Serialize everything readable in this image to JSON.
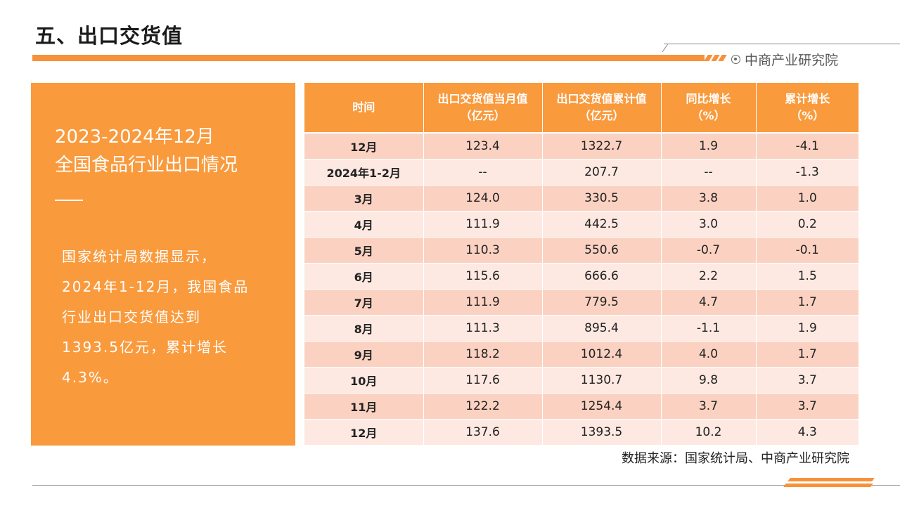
{
  "page_title": "五、出口交货值",
  "brand": {
    "name": "中商产业研究院",
    "icon": "circle-dot-icon"
  },
  "panel": {
    "title_line1": "2023-2024年12月",
    "title_line2": "全国食品行业出口情况",
    "body": "国家统计局数据显示，2024年1-12月，我国食品行业出口交货值达到1393.5亿元，累计增长4.3%。"
  },
  "table": {
    "headers": [
      "时间",
      "出口交货值当月值\n（亿元）",
      "出口交货值累计值\n（亿元）",
      "同比增长\n（%）",
      "累计增长\n（%）"
    ],
    "rows": [
      [
        "12月",
        "123.4",
        "1322.7",
        "1.9",
        "-4.1"
      ],
      [
        "2024年1-2月",
        "--",
        "207.7",
        "--",
        "-1.3"
      ],
      [
        "3月",
        "124.0",
        "330.5",
        "3.8",
        "1.0"
      ],
      [
        "4月",
        "111.9",
        "442.5",
        "3.0",
        "0.2"
      ],
      [
        "5月",
        "110.3",
        "550.6",
        "-0.7",
        "-0.1"
      ],
      [
        "6月",
        "115.6",
        "666.6",
        "2.2",
        "1.5"
      ],
      [
        "7月",
        "111.9",
        "779.5",
        "4.7",
        "1.7"
      ],
      [
        "8月",
        "111.3",
        "895.4",
        "-1.1",
        "1.9"
      ],
      [
        "9月",
        "118.2",
        "1012.4",
        "4.0",
        "1.7"
      ],
      [
        "10月",
        "117.6",
        "1130.7",
        "9.8",
        "3.7"
      ],
      [
        "11月",
        "122.2",
        "1254.4",
        "3.7",
        "3.7"
      ],
      [
        "12月",
        "137.6",
        "1393.5",
        "10.2",
        "4.3"
      ]
    ]
  },
  "source": "数据来源：国家统计局、中商产业研究院",
  "colors": {
    "accent": "#f99a3d",
    "row_dark": "#fbd2c2",
    "row_light": "#fde9e2"
  }
}
